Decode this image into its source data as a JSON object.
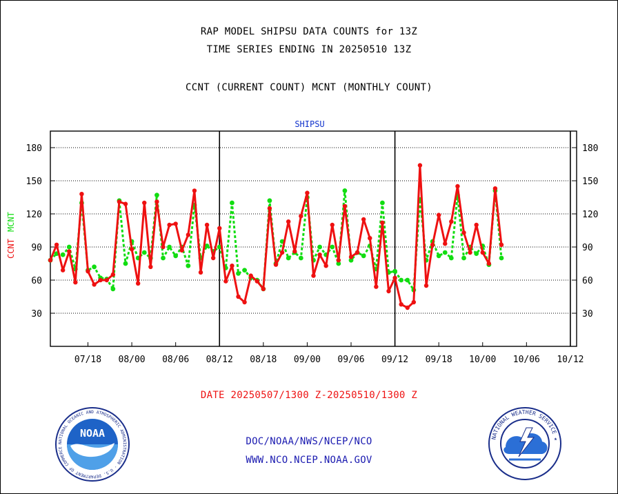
{
  "header": {
    "title_line1": "RAP MODEL SHIPSU DATA COUNTS for 13Z",
    "title_line2": "TIME SERIES ENDING IN 20250510 13Z",
    "subtitle": "CCNT (CURRENT COUNT) MCNT (MONTHLY COUNT)"
  },
  "footer": {
    "date_range": "DATE 20250507/1300 Z-20250510/1300 Z",
    "org_path": "DOC/NOAA/NWS/NCEP/NCO",
    "website": "WWW.NCO.NCEP.NOAA.GOV"
  },
  "logos": {
    "noaa_text": "NOAA",
    "noaa_ring": "NATIONAL OCEANIC AND ATMOSPHERIC ADMINISTRATION · U.S. DEPARTMENT OF COMMERCE ·",
    "nws_ring": "NATIONAL WEATHER SERVICE ★"
  },
  "colors": {
    "ccnt": "#ee1111",
    "mcnt": "#11dd11",
    "plot_title": "#1133cc",
    "footer_date": "#ee1111",
    "footer_links": "#1a1ab0"
  },
  "chart_data": {
    "type": "line",
    "title": "SHIPSU",
    "ylabel_parts": [
      "CCNT",
      "MCNT"
    ],
    "ylim": [
      0,
      195
    ],
    "yticks": [
      30,
      60,
      90,
      120,
      150,
      180
    ],
    "xlim": [
      0,
      84
    ],
    "xtick_positions": [
      6,
      13,
      20,
      27,
      34,
      41,
      48,
      55,
      62,
      69,
      76,
      83
    ],
    "xtick_labels": [
      "07/18",
      "08/00",
      "08/06",
      "08/12",
      "08/18",
      "09/00",
      "09/06",
      "09/12",
      "09/18",
      "10/00",
      "10/06",
      "10/12"
    ],
    "vlines": [
      27,
      55,
      83
    ],
    "grid": "horizontal-dotted",
    "series": [
      {
        "name": "CCNT",
        "values": [
          78,
          92,
          69,
          86,
          58,
          138,
          68,
          56,
          60,
          60,
          65,
          131,
          129,
          88,
          57,
          130,
          72,
          131,
          90,
          110,
          111,
          87,
          101,
          141,
          67,
          110,
          80,
          107,
          59,
          73,
          45,
          40,
          64,
          59,
          52,
          125,
          74,
          85,
          113,
          86,
          118,
          139,
          64,
          83,
          73,
          110,
          78,
          127,
          81,
          85,
          115,
          98,
          54,
          112,
          50,
          62,
          38,
          35,
          40,
          164,
          55,
          92,
          119,
          93,
          113,
          145,
          103,
          85,
          110,
          85,
          75,
          143,
          92
        ]
      },
      {
        "name": "MCNT",
        "values": [
          78,
          84,
          83,
          90,
          70,
          130,
          69,
          72,
          62,
          61,
          52,
          132,
          75,
          95,
          80,
          85,
          80,
          137,
          80,
          90,
          82,
          90,
          73,
          128,
          80,
          91,
          86,
          90,
          71,
          130,
          66,
          69,
          62,
          60,
          52,
          132,
          75,
          95,
          80,
          85,
          80,
          135,
          78,
          90,
          83,
          90,
          75,
          141,
          78,
          85,
          82,
          91,
          70,
          130,
          67,
          68,
          60,
          60,
          51,
          133,
          78,
          95,
          82,
          85,
          80,
          137,
          80,
          90,
          84,
          91,
          74,
          141,
          80
        ]
      }
    ]
  }
}
